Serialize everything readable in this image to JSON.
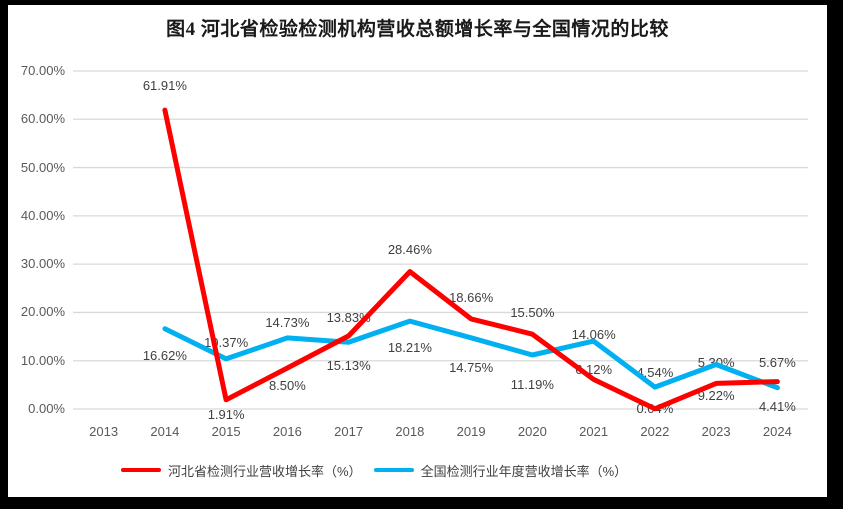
{
  "window": {
    "background": "#000000"
  },
  "chart_data": {
    "type": "line",
    "title": "图4 河北省检验检测机构营收总额增长率与全国情况的比较",
    "categories": [
      "2013",
      "2014",
      "2015",
      "2016",
      "2017",
      "2018",
      "2019",
      "2020",
      "2021",
      "2022",
      "2023",
      "2024"
    ],
    "series": [
      {
        "name": "河北省检测行业营收增长率（%）",
        "color": "#FF0000",
        "values": [
          null,
          61.91,
          1.91,
          8.5,
          15.13,
          28.46,
          18.66,
          15.5,
          6.12,
          0.04,
          5.3,
          5.67
        ]
      },
      {
        "name": "全国检测行业年度营收增长率（%）",
        "color": "#00B0F0",
        "values": [
          null,
          16.62,
          10.37,
          14.73,
          13.83,
          18.21,
          14.75,
          11.19,
          14.06,
          4.54,
          9.22,
          4.41
        ]
      }
    ],
    "ylim": [
      0,
      70
    ],
    "ytick_step": 10,
    "ytick_labels": [
      "0.00%",
      "10.00%",
      "20.00%",
      "30.00%",
      "40.00%",
      "50.00%",
      "60.00%",
      "70.00%"
    ],
    "value_label_format": "0.00%",
    "grid": true,
    "legend_position": "bottom",
    "colors": {
      "grid": "#D9D9D9",
      "axis_text": "#595959",
      "data_label_text": "#404040",
      "title_text": "#1a1a1a"
    }
  }
}
